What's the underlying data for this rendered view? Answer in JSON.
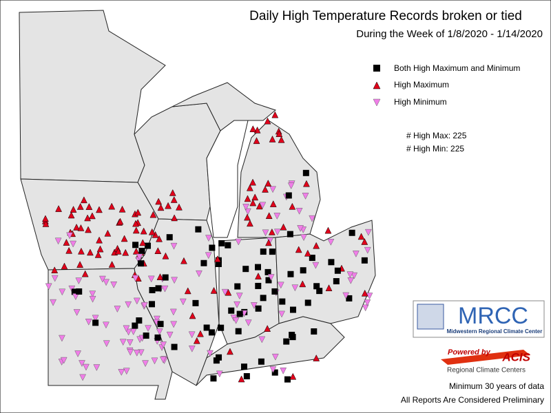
{
  "title": "Daily High Temperature Records broken or tied",
  "subtitle": "During the Week of 1/8/2020 - 1/14/2020",
  "legend": {
    "items": [
      "Both High Maximum and Minimum",
      "High Maximum",
      "High Minimum"
    ]
  },
  "counts": [
    "# High Max: 225",
    "# High Min: 225"
  ],
  "logo": {
    "name": "MRCC",
    "full_name": "Midwestern Regional Climate Center"
  },
  "acis": {
    "powered_by": "Powered by",
    "name": "ACIS",
    "subtitle": "Regional Climate Centers"
  },
  "footer": [
    "Minimum 30 years of data",
    "All Reports Are Considered Preliminary"
  ]
}
